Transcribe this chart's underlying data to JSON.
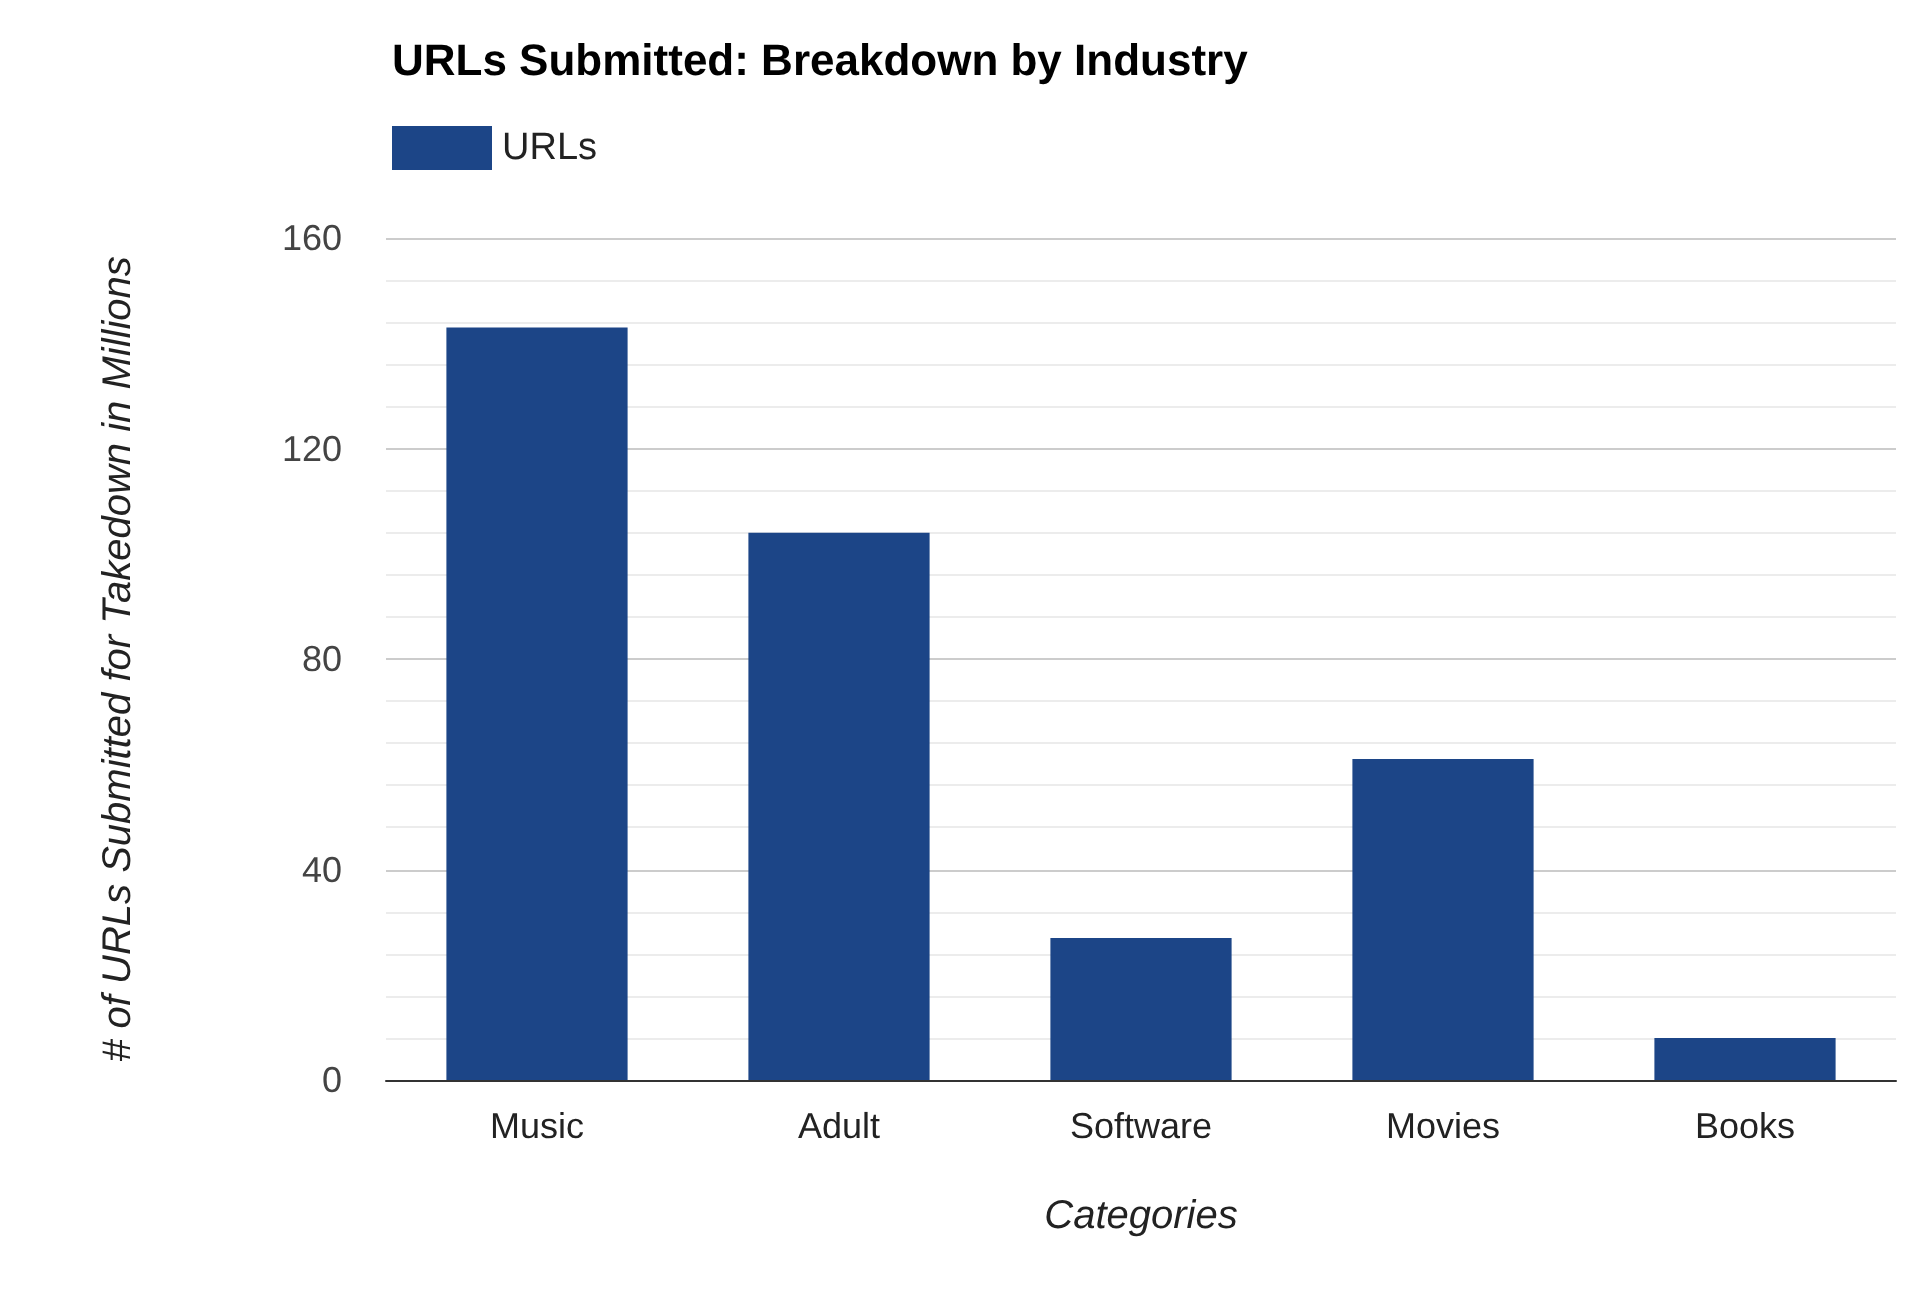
{
  "chart_data": {
    "type": "bar",
    "title": "URLs Submitted: Breakdown by Industry",
    "xlabel": "Categories",
    "ylabel": "# of URLs Submitted for Takedown in Millions",
    "categories": [
      "Music",
      "Adult",
      "Software",
      "Movies",
      "Books"
    ],
    "series": [
      {
        "name": "URLs",
        "color": "#1c4587",
        "values": [
          143,
          104,
          27,
          61,
          8
        ]
      }
    ],
    "ylim": [
      0,
      160
    ],
    "yticks": [
      0,
      {
        "value": 8,
        "label": null
      },
      {
        "value": 16,
        "label": null
      },
      {
        "value": 24,
        "label": null
      },
      {
        "value": 32,
        "label": null
      },
      40,
      {
        "value": 48,
        "label": null
      },
      {
        "value": 56,
        "label": null
      },
      {
        "value": 64,
        "label": null
      },
      {
        "value": 72,
        "label": null
      },
      80,
      {
        "value": 88,
        "label": null
      },
      {
        "value": 96,
        "label": null
      },
      {
        "value": 104,
        "label": null
      },
      {
        "value": 112,
        "label": null
      },
      120,
      {
        "value": 128,
        "label": null
      },
      {
        "value": 136,
        "label": null
      },
      {
        "value": 144,
        "label": null
      },
      {
        "value": 152,
        "label": null
      },
      160
    ],
    "grid": true,
    "legend": "top left"
  }
}
